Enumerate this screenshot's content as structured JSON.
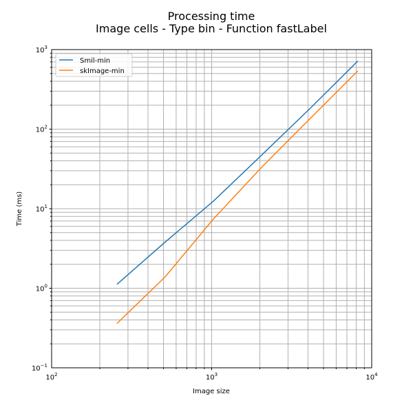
{
  "chart_data": {
    "type": "line",
    "title": "Processing time",
    "subtitle": "Image cells - Type bin - Function fastLabel",
    "xlabel": "Image size",
    "ylabel": "Time (ms)",
    "xscale": "log",
    "yscale": "log",
    "xlim": [
      100,
      10000
    ],
    "ylim": [
      0.1,
      1000
    ],
    "grid": true,
    "legend_position": "top-left",
    "x_ticks": [
      {
        "v": 100,
        "b": "10",
        "e": "2"
      },
      {
        "v": 1000,
        "b": "10",
        "e": "3"
      },
      {
        "v": 10000,
        "b": "10",
        "e": "4"
      }
    ],
    "y_ticks": [
      {
        "v": 0.1,
        "b": "10",
        "e": "−1"
      },
      {
        "v": 1,
        "b": "10",
        "e": "0"
      },
      {
        "v": 10,
        "b": "10",
        "e": "1"
      },
      {
        "v": 100,
        "b": "10",
        "e": "2"
      },
      {
        "v": 1000,
        "b": "10",
        "e": "3"
      }
    ],
    "series": [
      {
        "name": "Smil-min",
        "color": "#1f77b4",
        "x": [
          256,
          512,
          1024,
          2048,
          4096,
          8192
        ],
        "y": [
          1.12,
          3.8,
          12.4,
          47,
          180,
          720
        ]
      },
      {
        "name": "skImage-min",
        "color": "#ff7f0e",
        "x": [
          256,
          512,
          1024,
          2048,
          4096,
          8192
        ],
        "y": [
          0.36,
          1.39,
          7.4,
          33,
          134,
          540
        ]
      }
    ]
  }
}
